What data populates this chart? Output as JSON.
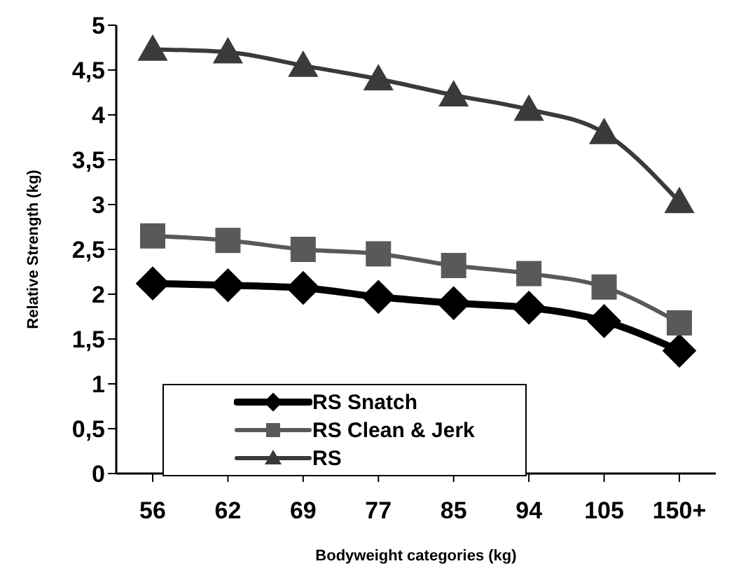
{
  "chart_data": {
    "type": "line",
    "xlabel": "Bodyweight categories (kg)",
    "ylabel": "Relative Strength (kg)",
    "categories": [
      "56",
      "62",
      "69",
      "77",
      "85",
      "94",
      "105",
      "150+"
    ],
    "series": [
      {
        "name": "RS Snatch",
        "color": "#000000",
        "marker": "diamond",
        "values": [
          2.12,
          2.1,
          2.07,
          1.97,
          1.9,
          1.85,
          1.7,
          1.37
        ]
      },
      {
        "name": "RS Clean & Jerk",
        "color": "#595959",
        "marker": "square",
        "values": [
          2.65,
          2.6,
          2.5,
          2.45,
          2.32,
          2.23,
          2.08,
          1.68
        ]
      },
      {
        "name": "RS",
        "color": "#3a3a3a",
        "marker": "triangle",
        "values": [
          4.73,
          4.7,
          4.55,
          4.4,
          4.22,
          4.06,
          3.8,
          3.03
        ]
      }
    ],
    "ylim": [
      0,
      5
    ],
    "yticks": [
      0,
      {
        "value": 0.5,
        "label": "0,5"
      },
      1,
      {
        "value": 1.5,
        "label": "1,5"
      },
      2,
      {
        "value": 2.5,
        "label": "2,5"
      },
      3,
      {
        "value": 3.5,
        "label": "3,5"
      },
      4,
      {
        "value": 4.5,
        "label": "4,5"
      },
      5
    ],
    "grid": false,
    "legend": "bottom left",
    "line_style": "solid"
  }
}
